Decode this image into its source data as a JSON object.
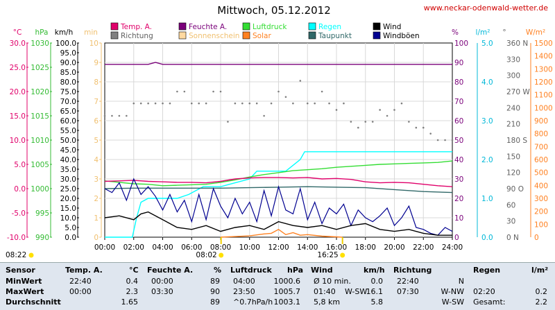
{
  "header": {
    "title": "Mittwoch, 05.12.2012",
    "source_link": "www.neckar-odenwald-wetter.de"
  },
  "legend": [
    {
      "label": "Temp. A.",
      "color": "#e0006a"
    },
    {
      "label": "Feuchte A.",
      "color": "#7a007a"
    },
    {
      "label": "Luftdruck",
      "color": "#33dd33"
    },
    {
      "label": "Regen",
      "color": "#00ffff"
    },
    {
      "label": "Wind",
      "color": "#000000"
    },
    {
      "label": "Richtung",
      "color": "#808080"
    },
    {
      "label": "Sonnenschein",
      "color": "#ffd9a0"
    },
    {
      "label": "Solar",
      "color": "#ff8020"
    },
    {
      "label": "Taupunkt",
      "color": "#306868"
    },
    {
      "label": "Windböen",
      "color": "#000090"
    }
  ],
  "axis_units": {
    "temp": "°C",
    "pressure": "hPa",
    "wind": "km/h",
    "sun": "min",
    "humidity": "%",
    "rain": "l/m²",
    "direction": "°",
    "solar": "W/m²"
  },
  "axis_ticks": {
    "temp": [
      "30.0",
      "25.0",
      "20.0",
      "15.0",
      "10.0",
      "5.0",
      "0.0",
      "-5.0",
      "-10.0"
    ],
    "pressure": [
      "1030",
      "1025",
      "1020",
      "1015",
      "1010",
      "1005",
      "1000",
      "995",
      "990"
    ],
    "wind": [
      "100.0",
      "95.0",
      "90.0",
      "85.0",
      "80.0",
      "75.0",
      "70.0",
      "65.0",
      "60.0",
      "55.0",
      "50.0",
      "45.0",
      "40.0",
      "35.0",
      "30.0",
      "25.0",
      "20.0",
      "15.0",
      "10.0",
      "5.0",
      "0.0"
    ],
    "sun": [
      "10",
      "9",
      "8",
      "7",
      "6",
      "5",
      "4",
      "3",
      "2",
      "1",
      "0"
    ],
    "humidity": [
      "100",
      "90",
      "80",
      "70",
      "60",
      "50",
      "40",
      "30",
      "20",
      "10",
      "0"
    ],
    "rain": [
      "5.0",
      "4.0",
      "3.0",
      "2.0",
      "1.0",
      "0.0"
    ],
    "direction": [
      "360 N",
      "330",
      "300",
      "270 W",
      "240",
      "210",
      "180 S",
      "150",
      "120",
      "90 O",
      "60",
      "30",
      "0 N"
    ],
    "solar": [
      "1500",
      "1400",
      "1300",
      "1200",
      "1100",
      "1000",
      "900",
      "800",
      "700",
      "600",
      "500",
      "400",
      "300",
      "200",
      "100",
      "0"
    ],
    "time": [
      "00:00",
      "02:00",
      "04:00",
      "06:00",
      "08:00",
      "10:00",
      "12:00",
      "14:00",
      "16:00",
      "18:00",
      "20:00",
      "22:00",
      "24:00"
    ]
  },
  "sun_events": {
    "sunrise": "08:02",
    "sunset": "16:25",
    "moonrise": "08:22"
  },
  "chart_data": {
    "type": "line",
    "title": "Mittwoch, 05.12.2012",
    "x_range": [
      "00:00",
      "24:00"
    ],
    "series": [
      {
        "name": "Temp. A.",
        "unit": "°C",
        "x": [
          0,
          1,
          2,
          3,
          4,
          5,
          6,
          7,
          8,
          9,
          10,
          11,
          12,
          13,
          14,
          15,
          16,
          17,
          18,
          19,
          20,
          21,
          22,
          23,
          24
        ],
        "values": [
          1.5,
          1.6,
          1.7,
          1.5,
          1.4,
          1.3,
          1.3,
          1.2,
          1.5,
          2.0,
          2.2,
          2.3,
          2.3,
          2.2,
          2.3,
          2.0,
          2.1,
          1.9,
          1.4,
          1.2,
          1.3,
          1.2,
          0.9,
          0.6,
          0.4
        ]
      },
      {
        "name": "Feuchte A.",
        "unit": "%",
        "x": [
          0,
          3,
          3.5,
          4,
          8,
          12,
          16,
          20,
          24
        ],
        "values": [
          89,
          89,
          90,
          89,
          89,
          89,
          89,
          89,
          89
        ]
      },
      {
        "name": "Luftdruck",
        "unit": "hPa",
        "x": [
          0,
          1,
          2,
          3,
          4,
          5,
          6,
          7,
          8,
          9,
          10,
          11,
          12,
          13,
          14,
          15,
          16,
          17,
          18,
          19,
          20,
          21,
          22,
          23,
          24
        ],
        "values": [
          1001.6,
          1001.3,
          1001.0,
          1000.9,
          1000.6,
          1000.7,
          1000.8,
          1000.9,
          1001.3,
          1001.8,
          1002.4,
          1002.9,
          1003.3,
          1003.7,
          1003.9,
          1004.1,
          1004.4,
          1004.6,
          1004.8,
          1005.0,
          1005.1,
          1005.2,
          1005.3,
          1005.4,
          1005.7
        ]
      },
      {
        "name": "Regen",
        "unit": "l/m²",
        "x": [
          0,
          1.9,
          2.2,
          2.5,
          3,
          3.6,
          4.5,
          5,
          5.8,
          6.3,
          6.8,
          8,
          9,
          10,
          10.5,
          11,
          12,
          12.5,
          13.5,
          13.8,
          14,
          18,
          22,
          24
        ],
        "values": [
          0,
          0,
          0.5,
          0.9,
          1.0,
          1.0,
          1.0,
          1.0,
          1.1,
          1.2,
          1.3,
          1.3,
          1.4,
          1.5,
          1.7,
          1.7,
          1.7,
          1.7,
          2.0,
          2.2,
          2.2,
          2.2,
          2.2,
          2.2
        ]
      },
      {
        "name": "Wind",
        "unit": "km/h",
        "x": [
          0,
          1,
          2,
          2.5,
          3,
          4,
          5,
          6,
          7,
          8,
          9,
          10,
          11,
          12,
          13,
          14,
          15,
          16,
          17,
          18,
          19,
          20,
          21,
          22,
          23,
          24
        ],
        "values": [
          10,
          11,
          9,
          12,
          13,
          9,
          5,
          4,
          6,
          3,
          5,
          6,
          4,
          8,
          6,
          5,
          6,
          4,
          6,
          7,
          4,
          3,
          4,
          2,
          1,
          1
        ]
      },
      {
        "name": "Windböen",
        "unit": "km/h",
        "x": [
          0,
          0.5,
          1,
          1.5,
          2,
          2.5,
          3,
          3.5,
          4,
          4.5,
          5,
          5.5,
          6,
          6.5,
          7,
          7.5,
          8,
          8.5,
          9,
          9.5,
          10,
          10.5,
          11,
          11.5,
          12,
          12.5,
          13,
          13.5,
          14,
          14.5,
          15,
          15.5,
          16,
          16.5,
          17,
          17.5,
          18,
          18.5,
          19,
          19.5,
          20,
          20.5,
          21,
          21.5,
          22,
          22.5,
          23,
          23.5,
          24
        ],
        "values": [
          25,
          23,
          28,
          19,
          30,
          22,
          26,
          21,
          14,
          22,
          13,
          19,
          8,
          22,
          9,
          25,
          16,
          10,
          20,
          12,
          18,
          8,
          24,
          11,
          26,
          14,
          12,
          25,
          9,
          18,
          7,
          15,
          12,
          17,
          6,
          14,
          10,
          8,
          11,
          15,
          6,
          10,
          16,
          5,
          4,
          2,
          1,
          5,
          3
        ]
      },
      {
        "name": "Taupunkt",
        "unit": "°C",
        "x": [
          0,
          2,
          4,
          6,
          8,
          10,
          12,
          14,
          16,
          18,
          20,
          22,
          24
        ],
        "values": [
          0.0,
          0.1,
          0.1,
          0.1,
          0.1,
          0.2,
          0.3,
          0.4,
          0.3,
          0.2,
          -0.2,
          -0.6,
          -0.8
        ]
      },
      {
        "name": "Solar",
        "unit": "W/m²",
        "x": [
          8,
          9,
          10,
          11,
          11.5,
          12,
          12.5,
          13,
          13.5,
          14,
          15,
          16.4
        ],
        "values": [
          0,
          5,
          10,
          25,
          30,
          60,
          20,
          35,
          15,
          20,
          8,
          0
        ]
      },
      {
        "name": "Richtung",
        "unit": "°",
        "type": "scatter",
        "x": [
          0,
          0.5,
          1,
          1.5,
          2,
          2.5,
          3,
          3.5,
          4,
          4.5,
          5,
          5.5,
          6,
          6.5,
          7,
          7.5,
          8,
          8.5,
          9,
          9.5,
          10,
          10.5,
          11,
          11.5,
          12,
          12.5,
          13,
          13.5,
          14,
          14.5,
          15,
          15.5,
          16,
          16.5,
          17,
          17.5,
          18,
          18.5,
          19,
          19.5,
          20,
          20.5,
          21,
          21.5,
          22,
          22.5,
          23,
          23.5,
          24
        ],
        "values": [
          225,
          225,
          225,
          225,
          248,
          248,
          248,
          248,
          248,
          248,
          270,
          270,
          248,
          248,
          248,
          270,
          270,
          214,
          248,
          248,
          248,
          248,
          225,
          248,
          270,
          260,
          248,
          290,
          248,
          248,
          270,
          248,
          236,
          248,
          214,
          203,
          214,
          214,
          236,
          225,
          236,
          248,
          214,
          203,
          203,
          192,
          180,
          180,
          180
        ]
      }
    ]
  },
  "summary_table": {
    "headers": {
      "sensor": "Sensor",
      "temp": "Temp. A.",
      "temp_unit": "°C",
      "hum": "Feuchte A.",
      "hum_unit": "%",
      "press": "Luftdruck",
      "press_unit": "hPa",
      "wind": "Wind",
      "wind_unit": "km/h",
      "dir": "Richtung",
      "rain": "Regen",
      "rain_unit": "l/m²"
    },
    "rows": [
      {
        "label": "MinWert",
        "temp_time": "22:40",
        "temp": "0.4",
        "hum_time": "00:00",
        "hum": "89",
        "press_time": "04:00",
        "press": "1000.6",
        "wind_time": "Ø 10 min.",
        "wind_dir": "",
        "wind": "0.0",
        "dir_time": "22:40",
        "dir": "N",
        "rain_time": "",
        "rain": ""
      },
      {
        "label": "MaxWert",
        "temp_time": "00:00",
        "temp": "2.3",
        "hum_time": "03:30",
        "hum": "90",
        "press_time": "23:50",
        "press": "1005.7",
        "wind_time": "01:40",
        "wind_dir": "W-SW",
        "wind": "16.1",
        "dir_time": "07:30",
        "dir": "W-NW",
        "rain_time": "02:20",
        "rain": "0.2"
      },
      {
        "label": "Durchschnitt",
        "temp_time": "",
        "temp": "1.65",
        "hum_time": "",
        "hum": "89",
        "press_time": "^0.7hPa/h",
        "press": "1003.1",
        "wind_time": "5,8 km",
        "wind_dir": "",
        "wind": "5.8",
        "dir_time": "",
        "dir": "W-SW",
        "rain_time": "Gesamt:",
        "rain": "2.2"
      }
    ]
  }
}
